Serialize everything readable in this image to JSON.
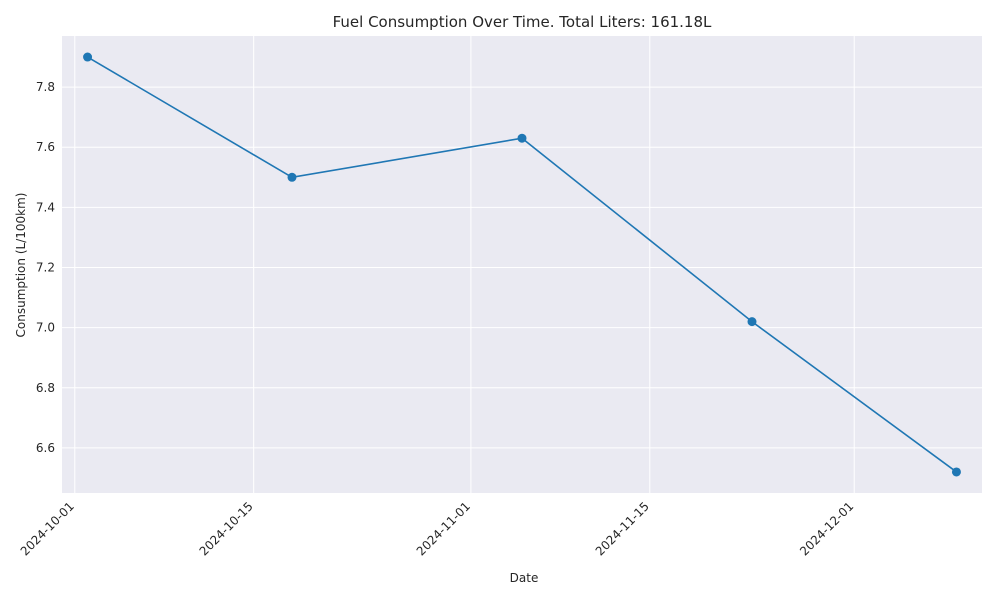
{
  "chart_data": {
    "type": "line",
    "title": "Fuel Consumption Over Time. Total Liters: 161.18L",
    "xlabel": "Date",
    "ylabel": "Consumption (L/100km)",
    "x": [
      "2024-10-02",
      "2024-10-18",
      "2024-11-05",
      "2024-11-23",
      "2024-12-09"
    ],
    "values": [
      7.9,
      7.5,
      7.63,
      7.02,
      6.52
    ],
    "xlim": [
      "2024-09-30",
      "2024-12-11"
    ],
    "ylim": [
      6.45,
      7.97
    ],
    "xticks": [
      "2024-10-01",
      "2024-10-15",
      "2024-11-01",
      "2024-11-15",
      "2024-12-01"
    ],
    "yticks": [
      "6.6",
      "6.8",
      "7.0",
      "7.2",
      "7.4",
      "7.6",
      "7.8"
    ],
    "grid": true,
    "marker": "circle",
    "colors": {
      "series": "#1f77b4",
      "background": "#eaeaf2",
      "grid": "#ffffff",
      "text": "#262626"
    }
  }
}
